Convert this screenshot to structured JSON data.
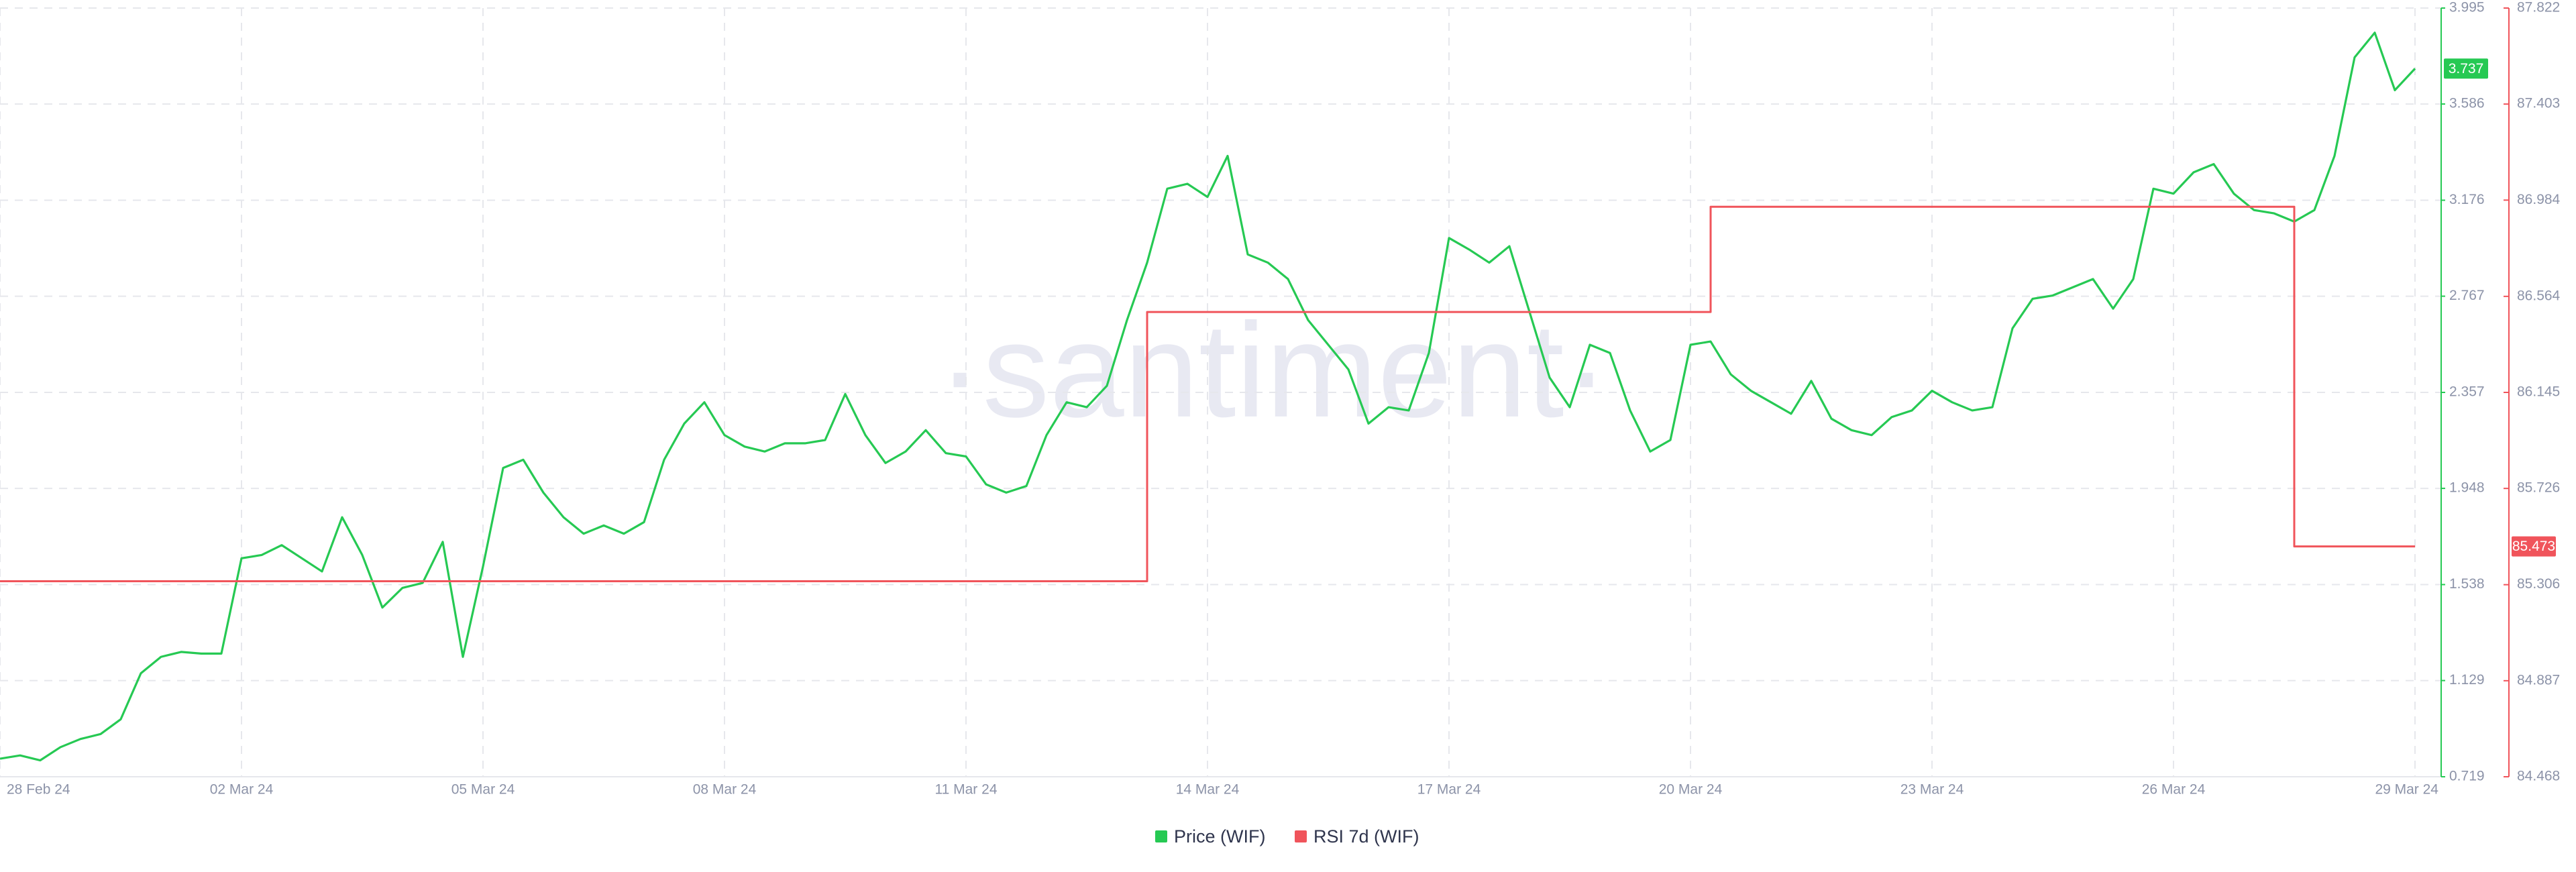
{
  "chart_data": {
    "type": "line",
    "watermark": "·santiment·",
    "categories": [
      "28 Feb 24",
      null,
      null,
      null,
      null,
      null,
      null,
      null,
      null,
      null,
      null,
      null,
      "02 Mar 24",
      null,
      null,
      null,
      null,
      null,
      null,
      null,
      null,
      null,
      null,
      null,
      "05 Mar 24",
      null,
      null,
      null,
      null,
      null,
      null,
      null,
      null,
      null,
      null,
      null,
      "08 Mar 24",
      null,
      null,
      null,
      null,
      null,
      null,
      null,
      null,
      null,
      null,
      null,
      "11 Mar 24",
      null,
      null,
      null,
      null,
      null,
      null,
      null,
      null,
      null,
      null,
      null,
      "14 Mar 24",
      null,
      null,
      null,
      null,
      null,
      null,
      null,
      null,
      null,
      null,
      null,
      "17 Mar 24",
      null,
      null,
      null,
      null,
      null,
      null,
      null,
      null,
      null,
      null,
      null,
      "20 Mar 24",
      null,
      null,
      null,
      null,
      null,
      null,
      null,
      null,
      null,
      null,
      null,
      "23 Mar 24",
      null,
      null,
      null,
      null,
      null,
      null,
      null,
      null,
      null,
      null,
      null,
      "26 Mar 24",
      null,
      null,
      null,
      null,
      null,
      null,
      null,
      null,
      null,
      null,
      null,
      "29 Mar 24"
    ],
    "series": [
      {
        "name": "Price (WIF)",
        "color": "#26c953",
        "values": [
          0.796,
          0.81,
          0.789,
          0.845,
          0.88,
          0.901,
          0.964,
          1.16,
          1.23,
          1.251,
          1.244,
          1.244,
          1.65,
          1.664,
          1.706,
          1.65,
          1.594,
          1.825,
          1.664,
          1.44,
          1.524,
          1.545,
          1.72,
          1.23,
          1.615,
          2.035,
          2.07,
          1.93,
          1.825,
          1.755,
          1.79,
          1.755,
          1.804,
          2.07,
          2.224,
          2.315,
          2.175,
          2.126,
          2.105,
          2.14,
          2.14,
          2.154,
          2.35,
          2.175,
          2.056,
          2.105,
          2.196,
          2.098,
          2.084,
          1.965,
          1.93,
          1.958,
          2.175,
          2.315,
          2.294,
          2.385,
          2.665,
          2.91,
          3.225,
          3.246,
          3.19,
          3.365,
          2.945,
          2.91,
          2.84,
          2.665,
          2.56,
          2.455,
          2.224,
          2.294,
          2.28,
          2.525,
          3.015,
          2.966,
          2.91,
          2.98,
          2.7,
          2.42,
          2.294,
          2.56,
          2.525,
          2.28,
          2.105,
          2.154,
          2.56,
          2.574,
          2.434,
          2.364,
          2.315,
          2.266,
          2.406,
          2.245,
          2.196,
          2.175,
          2.252,
          2.28,
          2.364,
          2.315,
          2.28,
          2.294,
          2.63,
          2.756,
          2.77,
          2.805,
          2.84,
          2.714,
          2.84,
          3.225,
          3.204,
          3.295,
          3.33,
          3.204,
          3.134,
          3.12,
          3.085,
          3.134,
          3.365,
          3.785,
          3.89,
          3.645,
          3.737
        ]
      },
      {
        "name": "RSI 7d (WIF)",
        "color": "#f0545b",
        "axis": "y2",
        "step": true,
        "values": [
          85.321,
          85.321,
          85.321,
          85.321,
          85.321,
          85.321,
          85.321,
          85.321,
          85.321,
          85.321,
          85.321,
          85.321,
          85.321,
          85.321,
          85.321,
          85.321,
          85.321,
          85.321,
          85.321,
          85.321,
          85.321,
          85.321,
          85.321,
          85.321,
          85.321,
          85.321,
          85.321,
          85.321,
          85.321,
          85.321,
          85.321,
          85.321,
          85.321,
          85.321,
          85.321,
          85.321,
          85.321,
          85.321,
          85.321,
          85.321,
          85.321,
          85.321,
          85.321,
          85.321,
          85.321,
          85.321,
          85.321,
          85.321,
          85.321,
          85.321,
          85.321,
          85.321,
          85.321,
          85.321,
          85.321,
          85.321,
          85.321,
          86.496,
          86.496,
          86.496,
          86.496,
          86.496,
          86.496,
          86.496,
          86.496,
          86.496,
          86.496,
          86.496,
          86.496,
          86.496,
          86.496,
          86.496,
          86.496,
          86.496,
          86.496,
          86.496,
          86.496,
          86.496,
          86.496,
          86.496,
          86.496,
          86.496,
          86.496,
          86.496,
          86.496,
          86.955,
          86.955,
          86.955,
          86.955,
          86.955,
          86.955,
          86.955,
          86.955,
          86.955,
          86.955,
          86.955,
          86.955,
          86.955,
          86.955,
          86.955,
          86.955,
          86.955,
          86.955,
          86.955,
          86.955,
          86.955,
          86.955,
          86.955,
          86.955,
          86.955,
          86.955,
          86.955,
          86.955,
          86.955,
          85.473,
          85.473,
          85.473,
          85.473,
          85.473,
          85.473,
          85.473
        ]
      }
    ],
    "ylim": [
      0.719,
      3.995
    ],
    "yticks": [
      0.719,
      1.129,
      1.538,
      1.948,
      2.357,
      2.767,
      3.176,
      3.586,
      3.995
    ],
    "y2lim": [
      84.468,
      87.822
    ],
    "y2ticks": [
      84.468,
      84.887,
      85.306,
      85.726,
      86.145,
      86.564,
      86.984,
      87.403,
      87.822
    ],
    "grid": true,
    "legend": "bottom"
  }
}
